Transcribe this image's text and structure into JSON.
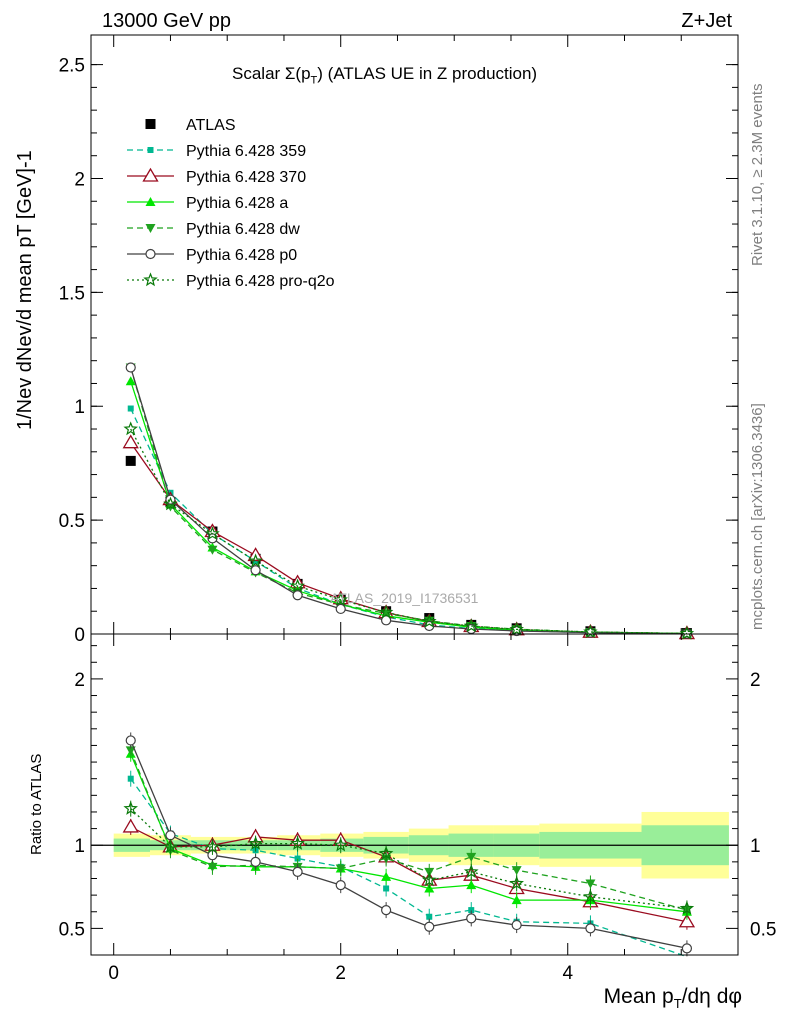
{
  "header": {
    "energy_label": "13000 GeV pp",
    "process_label": "Z+Jet"
  },
  "side_labels": {
    "rivet": "Rivet 3.1.10, ≥ 2.3M events",
    "mcplots": "mcplots.cern.ch [arXiv:1306.3436]"
  },
  "colors": {
    "ATLAS": "#000000",
    "Pythia 6.428 359": "#00b891",
    "Pythia 6.428 370": "#9a0b1f",
    "Pythia 6.428 a": "#00e600",
    "Pythia 6.428 dw": "#1fa21f",
    "Pythia 6.428 p0": "#404040",
    "Pythia 6.428 pro-q2o": "#0a7a0a",
    "band_inner": "#99ee99",
    "band_outer": "#ffff99"
  },
  "chart_data": [
    {
      "type": "scatter",
      "title": "Scalar Σ(pT) (ATLAS UE in Z production)",
      "title_main": "Scalar Σ(p",
      "title_sub": "T",
      "title_rest": ") (ATLAS UE in Z production)",
      "ylabel": "1/Nev dNev/d mean pT [GeV]-1",
      "analysis_watermark": "ATLAS_2019_I1736531",
      "xlim": [
        -0.2,
        5.5
      ],
      "ylim": [
        0,
        2.63
      ],
      "yticks": [
        0,
        0.5,
        1,
        1.5,
        2,
        2.5
      ],
      "ytick_labels": [
        "0",
        "0.5",
        "1",
        "1.5",
        "2",
        "2.5"
      ],
      "legend_position": "top-left",
      "x": [
        0.15,
        0.5,
        0.87,
        1.25,
        1.62,
        2.0,
        2.4,
        2.78,
        3.15,
        3.55,
        4.2,
        5.05
      ],
      "series": [
        {
          "name": "ATLAS",
          "marker": "square",
          "line": "none",
          "values": [
            0.76,
            0.58,
            0.45,
            0.33,
            0.22,
            0.15,
            0.1,
            0.07,
            0.04,
            0.025,
            0.012,
            0.004
          ]
        },
        {
          "name": "Pythia 6.428 359",
          "marker": "smallsquare",
          "line": "dashed",
          "values": [
            0.99,
            0.62,
            0.44,
            0.32,
            0.2,
            0.13,
            0.075,
            0.04,
            0.024,
            0.014,
            0.006,
            0.001
          ]
        },
        {
          "name": "Pythia 6.428 370",
          "marker": "triangle-open",
          "line": "solid",
          "values": [
            0.84,
            0.59,
            0.45,
            0.345,
            0.225,
            0.155,
            0.094,
            0.055,
            0.033,
            0.019,
            0.008,
            0.002
          ]
        },
        {
          "name": "Pythia 6.428 a",
          "marker": "triangle-filled",
          "line": "solid",
          "values": [
            1.11,
            0.57,
            0.38,
            0.275,
            0.19,
            0.13,
            0.08,
            0.052,
            0.03,
            0.017,
            0.008,
            0.002
          ]
        },
        {
          "name": "Pythia 6.428 dw",
          "marker": "triangle-down",
          "line": "dashed",
          "values": [
            1.17,
            0.56,
            0.37,
            0.27,
            0.18,
            0.13,
            0.09,
            0.058,
            0.035,
            0.021,
            0.009,
            0.002
          ]
        },
        {
          "name": "Pythia 6.428 p0",
          "marker": "circle-open",
          "line": "solid",
          "values": [
            1.17,
            0.59,
            0.42,
            0.28,
            0.17,
            0.11,
            0.06,
            0.035,
            0.022,
            0.013,
            0.006,
            0.001
          ]
        },
        {
          "name": "Pythia 6.428 pro-q2o",
          "marker": "star",
          "line": "dotted",
          "values": [
            0.9,
            0.57,
            0.44,
            0.32,
            0.21,
            0.15,
            0.095,
            0.055,
            0.035,
            0.02,
            0.009,
            0.002
          ]
        }
      ]
    },
    {
      "type": "line",
      "ylabel": "Ratio to ATLAS",
      "xlabel": "Mean pT/dη dφ",
      "xlabel_a": "Mean p",
      "xlabel_sub": "T",
      "xlabel_b": "/dη dφ",
      "xlim": [
        -0.2,
        5.5
      ],
      "ylim": [
        0.34,
        2.27
      ],
      "xticks": [
        0,
        2,
        4
      ],
      "xtick_labels": [
        "0",
        "2",
        "4"
      ],
      "yticks": [
        0.5,
        1,
        2
      ],
      "ytick_labels": [
        "0.5",
        "1",
        "2"
      ],
      "reference_line": 1.0,
      "band_edges": [
        0.0,
        0.32,
        0.68,
        1.06,
        1.44,
        1.82,
        2.2,
        2.6,
        2.95,
        3.35,
        3.75,
        4.65,
        5.42
      ],
      "band_inner": [
        0.04,
        0.03,
        0.03,
        0.03,
        0.03,
        0.04,
        0.05,
        0.06,
        0.07,
        0.07,
        0.08,
        0.12
      ],
      "band_outer": [
        0.07,
        0.06,
        0.05,
        0.05,
        0.06,
        0.07,
        0.08,
        0.1,
        0.12,
        0.12,
        0.13,
        0.2
      ],
      "x": [
        0.15,
        0.5,
        0.87,
        1.25,
        1.62,
        2.0,
        2.4,
        2.78,
        3.15,
        3.55,
        4.2,
        5.05
      ],
      "series": [
        {
          "name": "Pythia 6.428 359",
          "values": [
            1.4,
            1.07,
            0.98,
            0.97,
            0.92,
            0.87,
            0.74,
            0.57,
            0.61,
            0.54,
            0.53,
            0.33
          ]
        },
        {
          "name": "Pythia 6.428 370",
          "values": [
            1.11,
            0.99,
            1.0,
            1.05,
            1.03,
            1.03,
            0.93,
            0.79,
            0.82,
            0.74,
            0.66,
            0.54
          ]
        },
        {
          "name": "Pythia 6.428 a",
          "values": [
            1.55,
            0.98,
            0.88,
            0.87,
            0.87,
            0.86,
            0.81,
            0.74,
            0.76,
            0.67,
            0.67,
            0.6
          ]
        },
        {
          "name": "Pythia 6.428 dw",
          "values": [
            1.57,
            0.97,
            0.87,
            0.88,
            0.87,
            0.86,
            0.92,
            0.84,
            0.93,
            0.85,
            0.77,
            0.61
          ]
        },
        {
          "name": "Pythia 6.428 p0",
          "values": [
            1.63,
            1.06,
            0.94,
            0.9,
            0.84,
            0.76,
            0.61,
            0.51,
            0.56,
            0.52,
            0.5,
            0.38
          ]
        },
        {
          "name": "Pythia 6.428 pro-q2o",
          "values": [
            1.22,
            0.99,
            0.99,
            1.01,
            1.01,
            1.0,
            0.95,
            0.79,
            0.84,
            0.77,
            0.69,
            0.62
          ]
        }
      ]
    }
  ]
}
